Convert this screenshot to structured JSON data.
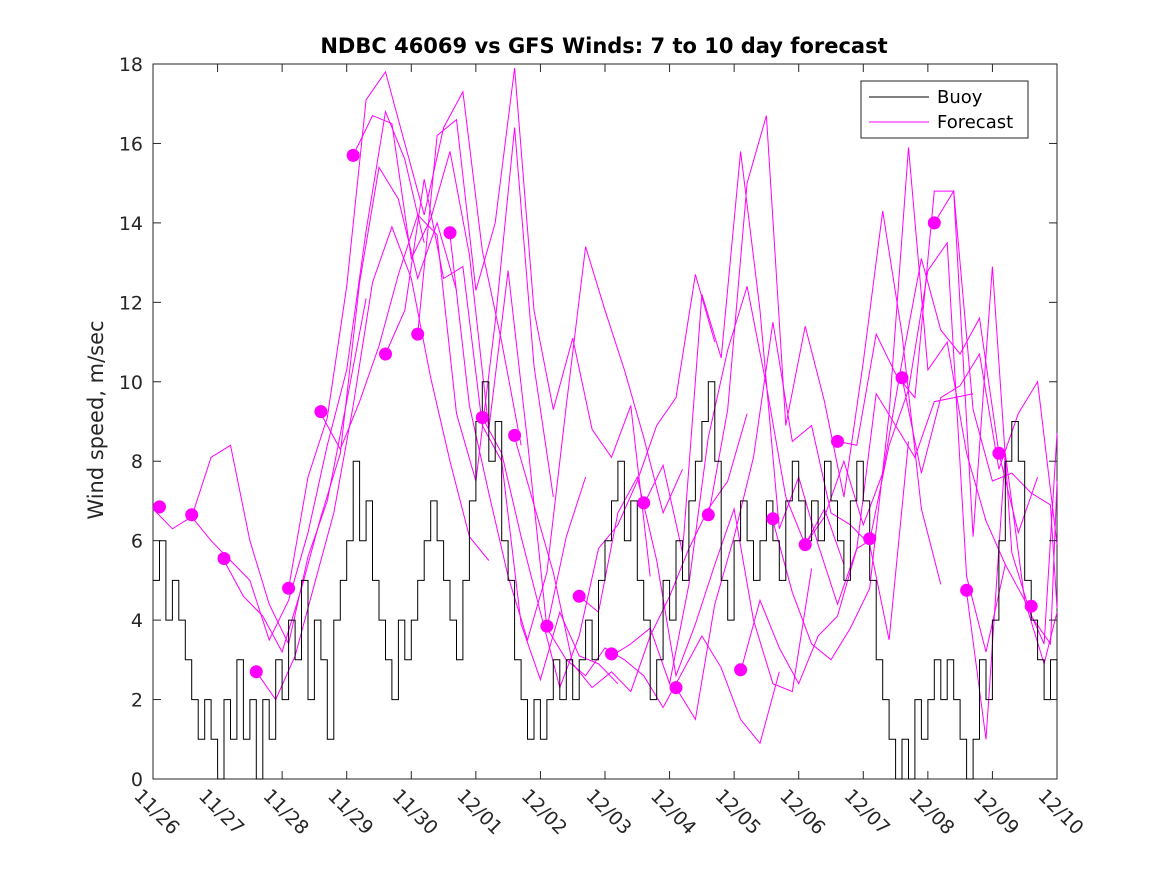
{
  "chart_data": {
    "type": "line",
    "title": "NDBC 46069 vs GFS Winds: 7 to 10 day forecast",
    "xlabel": "",
    "ylabel": "Wind speed, m/sec",
    "x_unit": "days since 11/26 00:00",
    "xlim": [
      0,
      14
    ],
    "ylim": [
      0,
      18
    ],
    "yticks": [
      0,
      2,
      4,
      6,
      8,
      10,
      12,
      14,
      16,
      18
    ],
    "xticks": [
      {
        "x": 0,
        "label": "11/26"
      },
      {
        "x": 1,
        "label": "11/27"
      },
      {
        "x": 2,
        "label": "11/28"
      },
      {
        "x": 3,
        "label": "11/29"
      },
      {
        "x": 4,
        "label": "11/30"
      },
      {
        "x": 5,
        "label": "12/01"
      },
      {
        "x": 6,
        "label": "12/02"
      },
      {
        "x": 7,
        "label": "12/03"
      },
      {
        "x": 8,
        "label": "12/04"
      },
      {
        "x": 9,
        "label": "12/05"
      },
      {
        "x": 10,
        "label": "12/06"
      },
      {
        "x": 11,
        "label": "12/07"
      },
      {
        "x": 12,
        "label": "12/08"
      },
      {
        "x": 13,
        "label": "12/09"
      },
      {
        "x": 14,
        "label": "12/10"
      }
    ],
    "legend": {
      "position": "top-right",
      "entries": [
        {
          "label": "Buoy",
          "color": "#000000"
        },
        {
          "label": "Forecast",
          "color": "#ff00ff"
        }
      ]
    },
    "colors": {
      "buoy": "#000000",
      "forecast": "#ff00ff"
    },
    "buoy": {
      "x": [
        0.0,
        0.1,
        0.2,
        0.3,
        0.4,
        0.5,
        0.6,
        0.7,
        0.8,
        0.9,
        1.0,
        1.1,
        1.2,
        1.3,
        1.4,
        1.5,
        1.6,
        1.7,
        1.8,
        1.9,
        2.0,
        2.1,
        2.2,
        2.3,
        2.4,
        2.5,
        2.6,
        2.7,
        2.8,
        2.9,
        3.0,
        3.1,
        3.2,
        3.3,
        3.4,
        3.5,
        3.6,
        3.7,
        3.8,
        3.9,
        4.0,
        4.1,
        4.2,
        4.3,
        4.4,
        4.5,
        4.6,
        4.7,
        4.8,
        4.9,
        5.0,
        5.1,
        5.2,
        5.3,
        5.4,
        5.5,
        5.6,
        5.7,
        5.8,
        5.9,
        6.0,
        6.1,
        6.2,
        6.3,
        6.4,
        6.5,
        6.6,
        6.7,
        6.8,
        6.9,
        7.0,
        7.1,
        7.2,
        7.3,
        7.4,
        7.5,
        7.6,
        7.7,
        7.8,
        7.9,
        8.0,
        8.1,
        8.2,
        8.3,
        8.4,
        8.5,
        8.6,
        8.7,
        8.8,
        8.9,
        9.0,
        9.1,
        9.2,
        9.3,
        9.4,
        9.5,
        9.6,
        9.7,
        9.8,
        9.9,
        10.0,
        10.1,
        10.2,
        10.3,
        10.4,
        10.5,
        10.6,
        10.7,
        10.8,
        10.9,
        11.0,
        11.1,
        11.2,
        11.3,
        11.4,
        11.5,
        11.6,
        11.7,
        11.8,
        11.9,
        12.0,
        12.1,
        12.2,
        12.3,
        12.4,
        12.5,
        12.6,
        12.7,
        12.8,
        12.9,
        13.0,
        13.1,
        13.2,
        13.3,
        13.4,
        13.5,
        13.6,
        13.7,
        13.8,
        13.9,
        14.0
      ],
      "y": [
        5,
        6,
        4,
        5,
        4,
        3,
        2,
        1,
        2,
        1,
        0,
        2,
        1,
        3,
        1,
        2,
        0,
        2,
        1,
        3,
        2,
        4,
        3,
        5,
        2,
        4,
        3,
        1,
        4,
        5,
        6,
        8,
        6,
        7,
        5,
        4,
        3,
        2,
        4,
        3,
        4,
        5,
        6,
        7,
        6,
        5,
        4,
        3,
        5,
        7,
        9,
        10,
        8,
        9,
        6,
        5,
        3,
        2,
        1,
        2,
        1,
        2,
        3,
        2,
        3,
        2,
        3,
        4,
        3,
        5,
        6,
        7,
        8,
        6,
        7,
        5,
        4,
        2,
        3,
        5,
        4,
        6,
        5,
        7,
        8,
        9,
        10,
        8,
        5,
        4,
        6,
        7,
        6,
        5,
        6,
        7,
        6,
        5,
        7,
        8,
        7,
        6,
        7,
        6,
        8,
        7,
        6,
        5,
        7,
        8,
        7,
        5,
        3,
        2,
        1,
        0,
        1,
        0,
        2,
        1,
        2,
        3,
        2,
        3,
        2,
        1,
        0,
        1,
        3,
        2,
        4,
        6,
        8,
        9,
        8,
        5,
        4,
        3,
        2,
        3,
        2
      ]
    },
    "forecast_markers": {
      "x": [
        0.1,
        0.6,
        1.1,
        1.6,
        2.1,
        2.6,
        3.1,
        3.6,
        4.1,
        4.6,
        5.1,
        5.6,
        6.1,
        6.6,
        7.1,
        7.6,
        8.1,
        8.6,
        9.1,
        9.6,
        10.1,
        10.6,
        11.1,
        11.6,
        12.1,
        12.6,
        13.1,
        13.6
      ],
      "y": [
        6.85,
        6.65,
        5.55,
        2.7,
        4.8,
        9.25,
        15.7,
        10.7,
        11.2,
        13.75,
        9.1,
        8.65,
        3.85,
        4.6,
        3.15,
        6.95,
        2.3,
        6.65,
        2.75,
        6.55,
        5.9,
        8.5,
        6.05,
        10.1,
        14.0,
        4.75,
        8.2,
        4.35
      ]
    },
    "forecast_runs": [
      {
        "name": "run-1",
        "x": [
          0.0,
          0.3,
          0.6,
          0.9,
          1.2,
          1.5,
          1.8,
          2.1,
          2.4,
          2.7,
          3.0,
          3.3
        ],
        "y": [
          6.8,
          6.3,
          6.6,
          8.1,
          8.4,
          6.0,
          4.4,
          3.4,
          5.6,
          7.0,
          9.5,
          12.1
        ]
      },
      {
        "name": "run-2",
        "x": [
          0.6,
          0.9,
          1.2,
          1.5,
          1.8,
          2.1,
          2.4,
          2.7,
          3.0,
          3.3,
          3.6,
          3.9,
          4.2
        ],
        "y": [
          6.6,
          6.0,
          5.5,
          5.0,
          3.5,
          4.5,
          6.2,
          8.4,
          10.3,
          13.8,
          16.8,
          15.6,
          13.5
        ]
      },
      {
        "name": "run-3",
        "x": [
          1.1,
          1.4,
          1.7,
          2.0,
          2.3,
          2.6,
          2.9,
          3.2,
          3.5,
          3.8,
          4.1,
          4.4,
          4.7
        ],
        "y": [
          5.5,
          4.6,
          4.1,
          3.2,
          4.8,
          6.6,
          8.2,
          12.5,
          15.4,
          14.6,
          12.6,
          14.0,
          12.3
        ]
      },
      {
        "name": "run-4",
        "x": [
          1.6,
          1.9,
          2.2,
          2.5,
          2.8,
          3.1,
          3.4,
          3.7,
          4.0,
          4.3,
          4.6,
          4.9,
          5.2
        ],
        "y": [
          2.7,
          2.0,
          3.1,
          4.9,
          6.7,
          9.4,
          12.5,
          13.9,
          12.6,
          10.1,
          8.0,
          6.1,
          5.5
        ]
      },
      {
        "name": "run-5",
        "x": [
          2.1,
          2.4,
          2.7,
          3.0,
          3.3,
          3.6,
          3.9,
          4.2,
          4.5,
          4.8,
          5.1,
          5.4,
          5.7
        ],
        "y": [
          4.8,
          7.6,
          9.1,
          12.4,
          17.1,
          17.8,
          16.0,
          14.2,
          16.4,
          17.3,
          13.3,
          11.0,
          8.4
        ]
      },
      {
        "name": "run-6",
        "x": [
          2.6,
          2.9,
          3.2,
          3.5,
          3.8,
          4.1,
          4.4,
          4.7,
          5.0,
          5.3,
          5.6,
          5.9,
          6.2
        ],
        "y": [
          9.2,
          8.3,
          9.5,
          10.9,
          12.7,
          14.2,
          13.7,
          9.2,
          7.5,
          11.5,
          16.4,
          10.4,
          7.1
        ]
      },
      {
        "name": "run-7",
        "x": [
          3.1,
          3.4,
          3.7,
          4.0,
          4.3,
          4.6,
          4.9,
          5.2,
          5.5,
          5.8,
          6.1,
          6.4,
          6.7
        ],
        "y": [
          15.7,
          16.7,
          16.5,
          13.1,
          14.1,
          15.8,
          13.2,
          8.8,
          12.8,
          8.5,
          3.8,
          6.1,
          7.6
        ]
      },
      {
        "name": "run-8",
        "x": [
          3.6,
          3.9,
          4.2,
          4.5,
          4.8,
          5.1,
          5.4,
          5.7,
          6.0,
          6.3,
          6.6,
          6.9,
          7.2
        ],
        "y": [
          10.7,
          11.8,
          15.1,
          12.6,
          12.9,
          8.9,
          8.0,
          3.9,
          2.5,
          4.2,
          3.1,
          2.9,
          2.4
        ]
      },
      {
        "name": "run-9",
        "x": [
          4.1,
          4.4,
          4.7,
          5.0,
          5.3,
          5.6,
          5.9,
          6.2,
          6.5,
          6.8,
          7.1,
          7.4,
          7.7
        ],
        "y": [
          11.2,
          16.2,
          16.6,
          12.3,
          14.0,
          17.9,
          11.8,
          9.3,
          11.1,
          8.8,
          8.1,
          9.4,
          5.1
        ]
      },
      {
        "name": "run-10",
        "x": [
          4.6,
          4.9,
          5.2,
          5.5,
          5.8,
          6.1,
          6.4,
          6.7,
          7.0,
          7.3,
          7.6,
          7.9,
          8.2
        ],
        "y": [
          13.7,
          9.4,
          7.2,
          5.1,
          3.5,
          5.2,
          9.4,
          13.4,
          11.8,
          10.3,
          8.6,
          6.7,
          7.8
        ]
      },
      {
        "name": "run-11",
        "x": [
          5.1,
          5.4,
          5.7,
          6.0,
          6.3,
          6.6,
          6.9,
          7.2,
          7.5,
          7.8,
          8.1,
          8.4,
          8.7
        ],
        "y": [
          9.1,
          8.2,
          6.1,
          4.2,
          2.3,
          3.6,
          5.8,
          6.4,
          7.5,
          8.9,
          9.6,
          12.7,
          11.0
        ]
      },
      {
        "name": "run-12",
        "x": [
          5.6,
          5.9,
          6.2,
          6.5,
          6.8,
          7.1,
          7.4,
          7.7,
          8.0,
          8.3,
          8.6,
          8.9,
          9.2
        ],
        "y": [
          8.6,
          6.9,
          5.2,
          2.9,
          2.3,
          2.7,
          2.2,
          3.6,
          4.6,
          5.8,
          6.8,
          7.5,
          9.2
        ]
      },
      {
        "name": "run-13",
        "x": [
          6.1,
          6.4,
          6.7,
          7.0,
          7.3,
          7.6,
          7.9,
          8.2,
          8.5,
          8.8,
          9.1,
          9.4,
          9.7
        ],
        "y": [
          3.8,
          3.0,
          2.6,
          3.3,
          3.0,
          2.6,
          1.8,
          2.7,
          3.6,
          2.8,
          1.5,
          0.9,
          2.7
        ]
      },
      {
        "name": "run-14",
        "x": [
          6.6,
          6.9,
          7.2,
          7.5,
          7.8,
          8.1,
          8.4,
          8.7,
          9.0,
          9.3,
          9.6,
          9.9,
          10.2
        ],
        "y": [
          4.6,
          4.2,
          6.7,
          7.6,
          5.5,
          2.6,
          3.9,
          5.4,
          6.8,
          4.0,
          2.4,
          2.2,
          5.3
        ]
      },
      {
        "name": "run-15",
        "x": [
          7.1,
          7.4,
          7.7,
          8.0,
          8.3,
          8.6,
          8.9,
          9.2,
          9.5,
          9.8,
          10.1,
          10.4,
          10.7
        ],
        "y": [
          3.1,
          3.4,
          3.8,
          2.4,
          4.9,
          8.6,
          10.8,
          12.4,
          9.9,
          7.1,
          5.9,
          6.8,
          5.4
        ]
      },
      {
        "name": "run-16",
        "x": [
          7.6,
          7.9,
          8.2,
          8.5,
          8.8,
          9.1,
          9.4,
          9.7,
          10.0,
          10.3,
          10.6,
          10.9,
          11.2
        ],
        "y": [
          6.9,
          7.9,
          5.7,
          12.2,
          10.6,
          15.8,
          11.8,
          6.3,
          7.6,
          5.9,
          4.4,
          5.8,
          6.1
        ]
      },
      {
        "name": "run-17",
        "x": [
          8.1,
          8.4,
          8.7,
          9.0,
          9.3,
          9.6,
          9.9,
          10.2,
          10.5,
          10.8,
          11.1,
          11.4,
          11.7
        ],
        "y": [
          2.3,
          1.5,
          4.4,
          6.1,
          8.1,
          11.5,
          8.5,
          8.9,
          6.7,
          6.4,
          5.9,
          3.5,
          8.5
        ]
      },
      {
        "name": "run-18",
        "x": [
          8.6,
          8.9,
          9.2,
          9.5,
          9.8,
          10.1,
          10.4,
          10.7,
          11.0,
          11.3,
          11.6,
          11.9,
          12.2
        ],
        "y": [
          6.6,
          9.3,
          15.0,
          16.7,
          8.9,
          11.4,
          9.5,
          7.1,
          10.5,
          14.3,
          11.2,
          6.8,
          4.9
        ]
      },
      {
        "name": "run-19",
        "x": [
          9.1,
          9.4,
          9.7,
          10.0,
          10.3,
          10.6,
          10.9,
          11.2,
          11.5,
          11.8,
          12.1,
          12.4,
          12.7
        ],
        "y": [
          2.7,
          4.5,
          3.3,
          2.4,
          3.6,
          4.1,
          5.8,
          9.7,
          8.9,
          8.1,
          9.5,
          9.6,
          9.7
        ]
      },
      {
        "name": "run-20",
        "x": [
          9.6,
          9.9,
          10.2,
          10.5,
          10.8,
          11.1,
          11.4,
          11.7,
          12.0,
          12.3,
          12.6,
          12.9,
          13.2
        ],
        "y": [
          6.5,
          4.7,
          3.4,
          3.0,
          3.8,
          4.8,
          9.2,
          15.9,
          10.3,
          11.0,
          8.2,
          6.5,
          5.4
        ]
      },
      {
        "name": "run-21",
        "x": [
          10.1,
          10.4,
          10.7,
          11.0,
          11.3,
          11.6,
          11.9,
          12.2,
          12.5,
          12.8,
          13.1,
          13.4,
          13.7
        ],
        "y": [
          5.9,
          6.6,
          8.0,
          6.4,
          7.7,
          10.5,
          13.1,
          11.3,
          10.7,
          11.6,
          8.2,
          6.2,
          7.6
        ]
      },
      {
        "name": "run-22",
        "x": [
          10.6,
          10.9,
          11.2,
          11.5,
          11.8,
          12.1,
          12.4,
          12.7,
          13.0,
          13.3,
          13.6,
          13.9,
          14.0
        ],
        "y": [
          8.5,
          8.4,
          11.2,
          10.2,
          9.6,
          14.8,
          14.8,
          9.3,
          7.5,
          7.7,
          7.2,
          6.9,
          4.3
        ]
      },
      {
        "name": "run-23",
        "x": [
          11.1,
          11.4,
          11.7,
          12.0,
          12.3,
          12.6,
          12.9,
          13.2,
          13.5,
          13.8,
          14.0
        ],
        "y": [
          6.0,
          8.4,
          9.8,
          12.8,
          13.5,
          5.1,
          3.2,
          5.4,
          4.5,
          3.4,
          8.7
        ]
      },
      {
        "name": "run-24",
        "x": [
          11.6,
          11.9,
          12.2,
          12.5,
          12.8,
          13.1,
          13.4,
          13.7,
          14.0
        ],
        "y": [
          10.1,
          7.7,
          9.6,
          9.9,
          10.7,
          7.8,
          9.2,
          10.0,
          5.9
        ]
      },
      {
        "name": "run-25",
        "x": [
          12.1,
          12.4,
          12.7,
          13.0,
          13.3,
          13.6,
          13.9,
          14.0
        ],
        "y": [
          14.0,
          14.8,
          6.1,
          12.9,
          5.7,
          4.1,
          3.4,
          7.5
        ]
      },
      {
        "name": "run-26",
        "x": [
          12.6,
          12.9,
          13.2,
          13.5,
          13.8,
          14.0
        ],
        "y": [
          4.7,
          1.0,
          8.2,
          4.5,
          2.9,
          4.2
        ]
      }
    ]
  }
}
